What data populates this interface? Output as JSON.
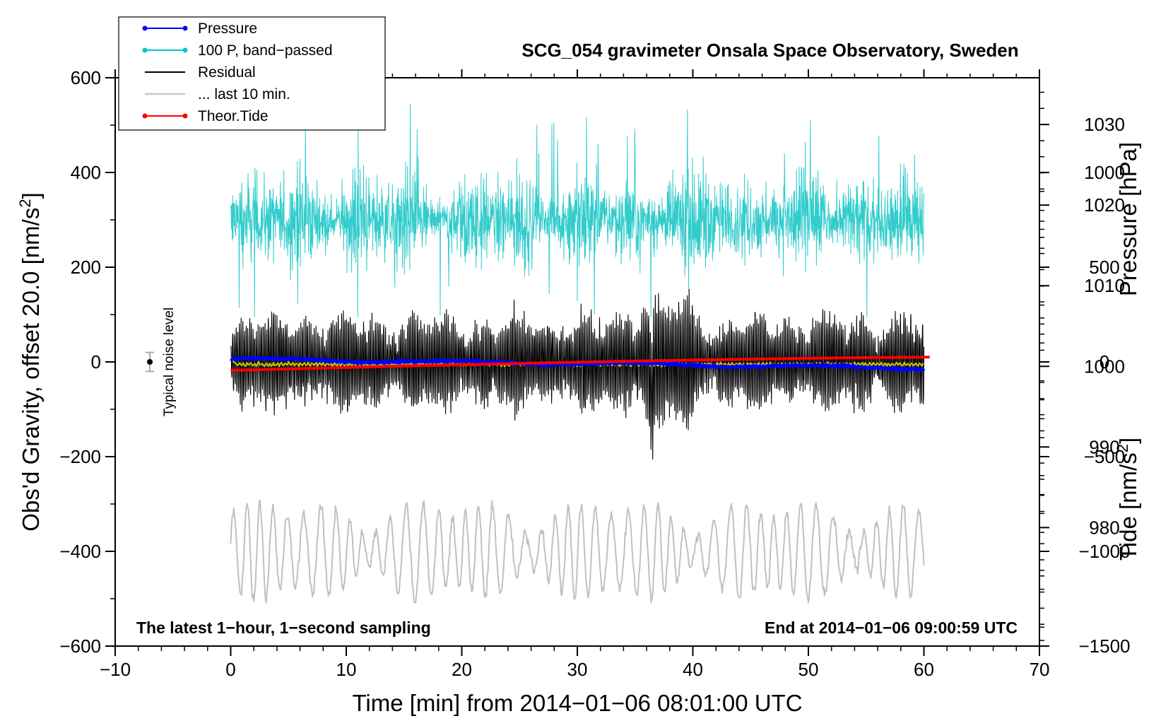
{
  "chart_data": {
    "type": "line",
    "title": "SCG_054 gravimeter Onsala Space Observatory, Sweden",
    "xlabel": "Time [min] from 2014−01−06 08:01:00 UTC",
    "ylabel": "Obs'd Gravity, offset 20.0 [nm/s",
    "ylabel_sup": "2",
    "ylabel_end": "]",
    "y2_pressure_label": "Pressure [hPa]",
    "y2_tide_label": "Tide [nm/s",
    "y2_tide_sup": "2",
    "y2_tide_end": "]",
    "xlim": [
      -10,
      70
    ],
    "ylim": [
      -600,
      600
    ],
    "pressure_lim": [
      965.3,
      1035.8
    ],
    "tide_lim": [
      -1500,
      1500
    ],
    "xticks": [
      -10,
      0,
      10,
      20,
      30,
      40,
      50,
      60,
      70
    ],
    "xtick_labels": [
      "−10",
      "0",
      "10",
      "20",
      "30",
      "40",
      "50",
      "60",
      "70"
    ],
    "yticks": [
      -600,
      -400,
      -200,
      0,
      200,
      400,
      600
    ],
    "ytick_labels": [
      "−600",
      "−400",
      "−200",
      "0",
      "200",
      "400",
      "600"
    ],
    "pressure_ticks": [
      980,
      990,
      1000,
      1010,
      1020,
      1030
    ],
    "pressure_tick_labels": [
      "980",
      "990",
      "1000",
      "1010",
      "1020",
      "1030"
    ],
    "tide_ticks": [
      -1500,
      -1000,
      -500,
      0,
      500,
      1000
    ],
    "tide_tick_labels": [
      "−1500",
      "−1000",
      "−500",
      "0",
      "500",
      "1000"
    ],
    "annotation_left": "The latest 1−hour, 1−second sampling",
    "annotation_right": "End at 2014−01−06 09:00:59 UTC",
    "noise_label": "Typical noise level",
    "noise_marker": {
      "x": -7,
      "y": 0,
      "err": 20
    },
    "legend": [
      {
        "label": "Pressure",
        "color": "#0000ff",
        "marker": true
      },
      {
        "label": "100 P, band−passed",
        "color": "#00c8c8",
        "marker": true
      },
      {
        "label": "Residual",
        "color": "#000000",
        "marker": false
      },
      {
        "label": "... last 10 min.",
        "color": "#c8c8c8",
        "marker": false
      },
      {
        "label": "Theor.Tide",
        "color": "#ff0000",
        "marker": true
      }
    ],
    "series": [
      {
        "name": "Pressure",
        "axis": "pressure",
        "color": "#0000ff",
        "x_range": [
          0,
          60
        ],
        "start": 1000.9,
        "end": 999.8,
        "noise": 0.25
      },
      {
        "name": "100 P, band−passed",
        "axis": "gravity",
        "color": "#33cccc",
        "x_range": [
          0,
          60
        ],
        "center": 300,
        "amp": 90,
        "max": 545,
        "min": 95
      },
      {
        "name": "Residual",
        "axis": "gravity",
        "color": "#000000",
        "x_range": [
          0,
          60
        ],
        "center": 0,
        "amp": 95,
        "max": 180,
        "min": -255
      },
      {
        "name": "Residual (smoothed)",
        "axis": "gravity",
        "color": "#c8c800",
        "x_range": [
          0,
          60
        ],
        "start": 10,
        "center": -5,
        "amp": 3
      },
      {
        "name": "... last 10 min.",
        "axis": "gravity",
        "color": "#c0c0c0",
        "x_range": [
          0,
          60
        ],
        "center": -400,
        "amp": 75,
        "max": -240,
        "min": -510
      },
      {
        "name": "Theor.Tide",
        "axis": "tide",
        "color": "#ff0000",
        "x_range": [
          0,
          60.5
        ],
        "start": -45,
        "end": 25
      }
    ]
  }
}
